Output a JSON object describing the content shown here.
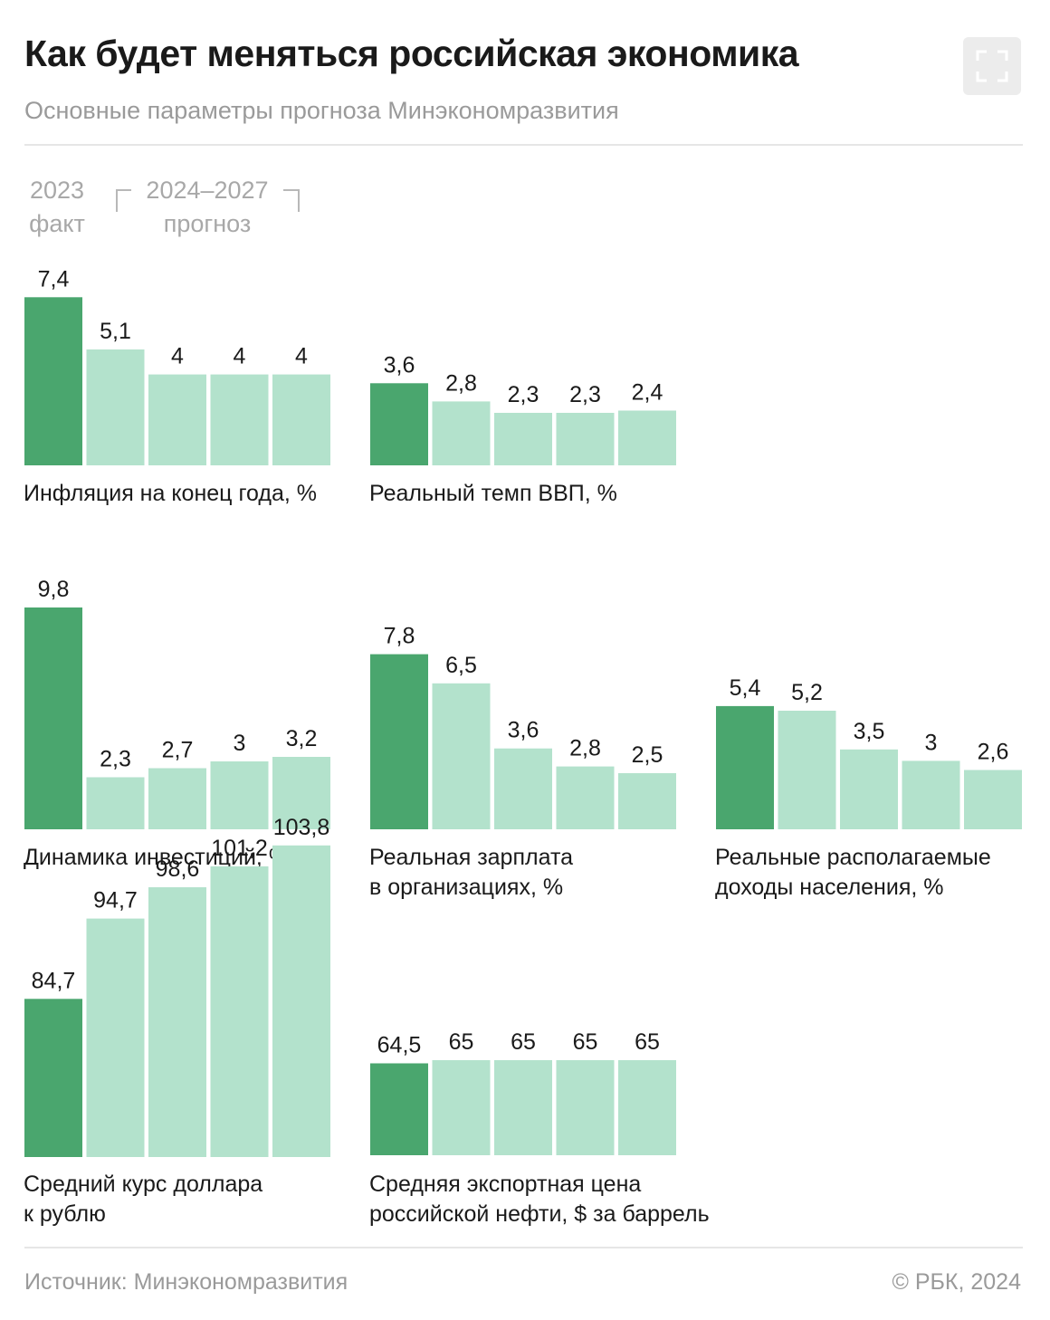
{
  "header": {
    "title": "Как будет меняться российская экономика",
    "subtitle": "Основные параметры прогноза Минэкономразвития",
    "expand_icon": "fullscreen-icon"
  },
  "legend": {
    "fact_year": "2023",
    "fact_label": "факт",
    "forecast_years": "2024–2027",
    "forecast_label": "прогноз"
  },
  "colors": {
    "fact": "#4aa66e",
    "forecast": "#b3e2cc"
  },
  "footer": {
    "source": "Источник: Минэкономразвития",
    "copyright": "© РБК, 2024"
  },
  "chart_data": [
    {
      "type": "bar",
      "categories": [
        "2023",
        "2024",
        "2025",
        "2026",
        "2027"
      ],
      "title": "Инфляция на конец года, %",
      "values": [
        7.4,
        5.1,
        4,
        4,
        4
      ],
      "labels": [
        "7,4",
        "5,1",
        "4",
        "4",
        "4"
      ]
    },
    {
      "type": "bar",
      "categories": [
        "2023",
        "2024",
        "2025",
        "2026",
        "2027"
      ],
      "title": "Реальный темп ВВП, %",
      "values": [
        3.6,
        2.8,
        2.3,
        2.3,
        2.4
      ],
      "labels": [
        "3,6",
        "2,8",
        "2,3",
        "2,3",
        "2,4"
      ]
    },
    {
      "type": "bar",
      "categories": [
        "2023",
        "2024",
        "2025",
        "2026",
        "2027"
      ],
      "title": "Динамика инвестиций, %",
      "values": [
        9.8,
        2.3,
        2.7,
        3,
        3.2
      ],
      "labels": [
        "9,8",
        "2,3",
        "2,7",
        "3",
        "3,2"
      ]
    },
    {
      "type": "bar",
      "categories": [
        "2023",
        "2024",
        "2025",
        "2026",
        "2027"
      ],
      "title": [
        "Реальная зарплата",
        "в организациях, %"
      ],
      "values": [
        7.8,
        6.5,
        3.6,
        2.8,
        2.5
      ],
      "labels": [
        "7,8",
        "6,5",
        "3,6",
        "2,8",
        "2,5"
      ]
    },
    {
      "type": "bar",
      "categories": [
        "2023",
        "2024",
        "2025",
        "2026",
        "2027"
      ],
      "title": [
        "Реальные располагаемые",
        "доходы населения, %"
      ],
      "values": [
        5.4,
        5.2,
        3.5,
        3,
        2.6
      ],
      "labels": [
        "5,4",
        "5,2",
        "3,5",
        "3",
        "2,6"
      ]
    },
    {
      "type": "bar",
      "categories": [
        "2023",
        "2024",
        "2025",
        "2026",
        "2027"
      ],
      "title": [
        "Средний курс доллара",
        "к рублю"
      ],
      "values": [
        84.7,
        94.7,
        98.6,
        101.2,
        103.8
      ],
      "labels": [
        "84,7",
        "94,7",
        "98,6",
        "101,2",
        "103,8"
      ]
    },
    {
      "type": "bar",
      "categories": [
        "2023",
        "2024",
        "2025",
        "2026",
        "2027"
      ],
      "title": [
        "Средняя экспортная цена",
        "российской нефти, $ за баррель"
      ],
      "values": [
        64.5,
        65,
        65,
        65,
        65
      ],
      "labels": [
        "64,5",
        "65",
        "65",
        "65",
        "65"
      ]
    }
  ]
}
